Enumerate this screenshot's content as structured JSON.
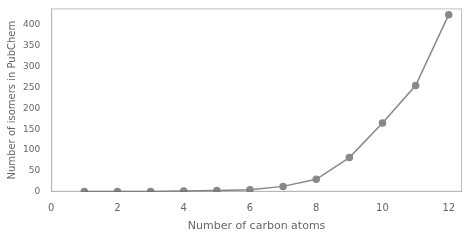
{
  "chart_data": {
    "type": "line",
    "xlabel": "Number of carbon atoms",
    "ylabel": "Number of isomers in PubChem",
    "x": [
      1,
      2,
      3,
      4,
      5,
      6,
      7,
      8,
      9,
      10,
      11,
      12
    ],
    "values": [
      1,
      1,
      1,
      2,
      3,
      5,
      13,
      30,
      82,
      165,
      255,
      425
    ],
    "color": "#888888",
    "marker": "circle",
    "line_style": "solid",
    "xlim": [
      0,
      12.4
    ],
    "ylim": [
      0,
      440
    ],
    "xticks": [
      0,
      2,
      4,
      6,
      8,
      10,
      12
    ],
    "yticks": [
      0,
      50,
      100,
      150,
      200,
      250,
      300,
      350,
      400
    ],
    "grid": false
  }
}
